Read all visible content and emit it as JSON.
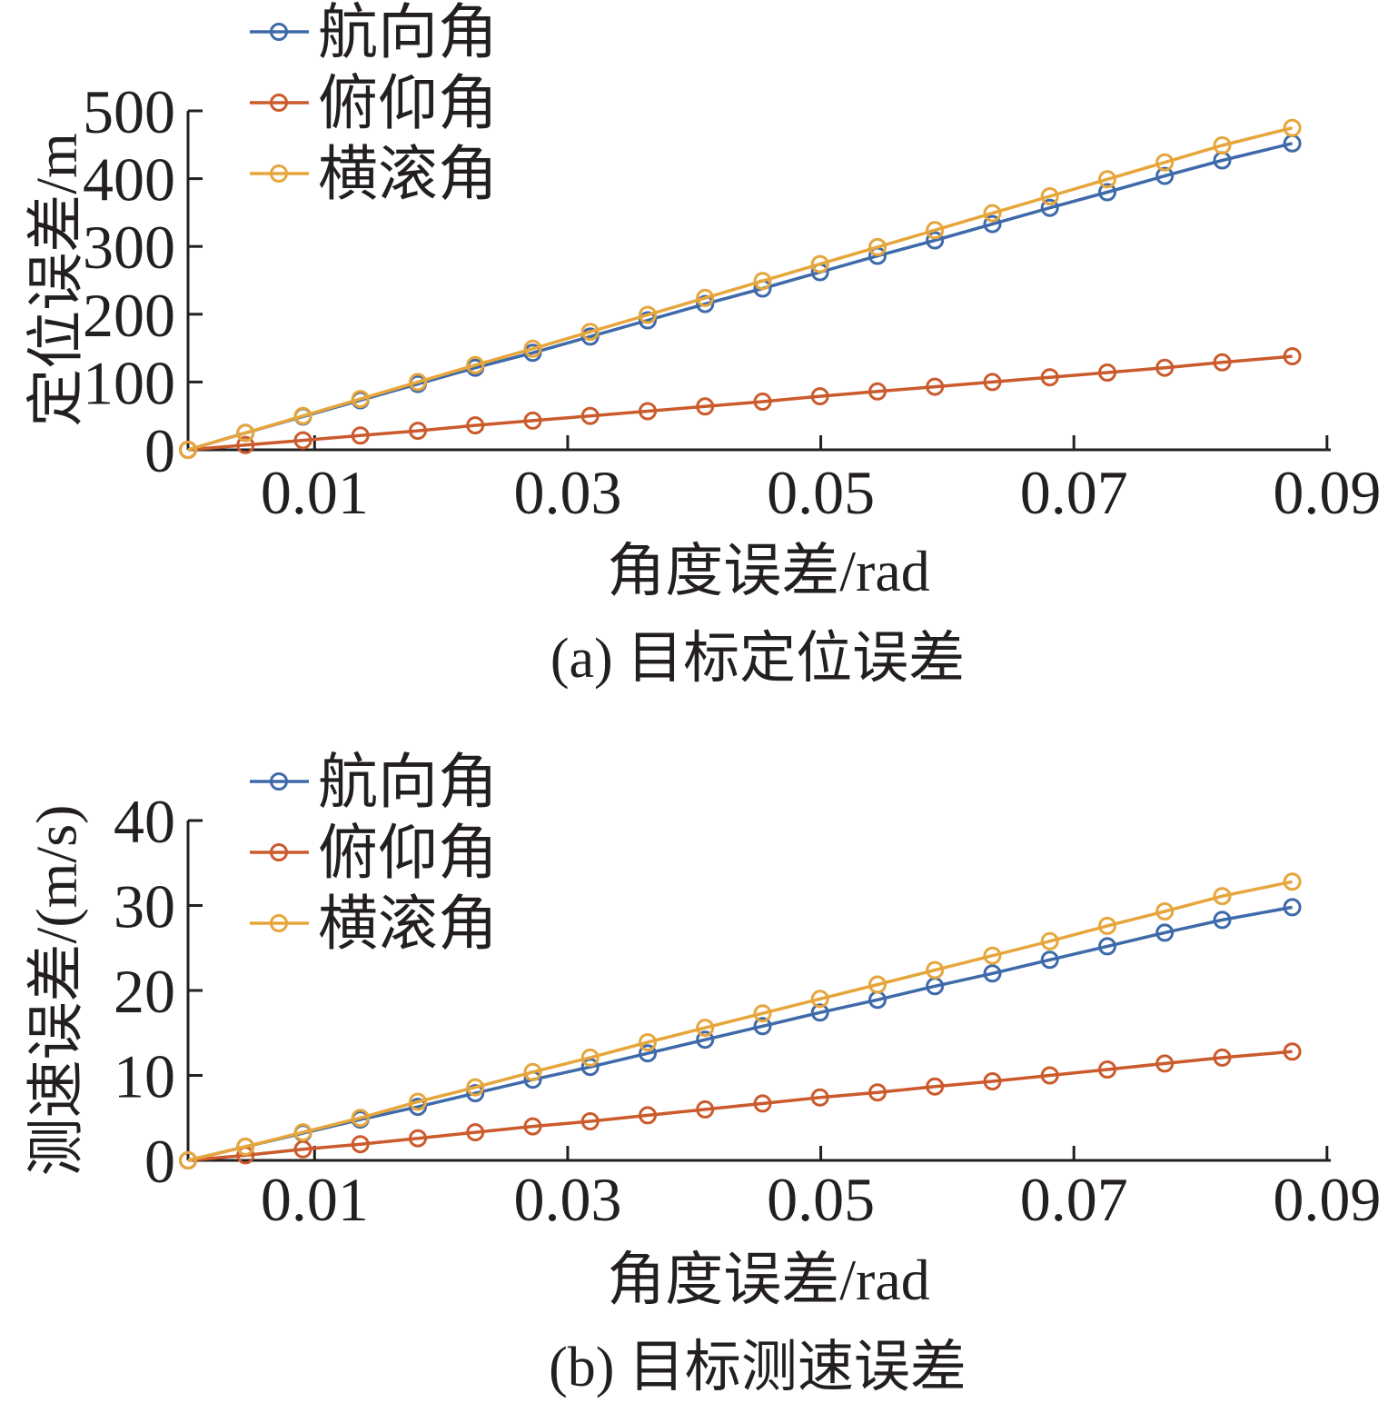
{
  "chart_data": [
    {
      "type": "line",
      "caption": "(a) 目标定位误差",
      "xlabel": "角度误差/rad",
      "ylabel": "定位误差/m",
      "xlim": [
        0,
        0.0903
      ],
      "ylim": [
        0,
        500
      ],
      "xticks": [
        0.01,
        0.03,
        0.05,
        0.07,
        0.09
      ],
      "xtick_labels": [
        "0.01",
        "0.03",
        "0.05",
        "0.07",
        "0.09"
      ],
      "yticks": [
        0,
        100,
        200,
        300,
        400,
        500
      ],
      "ytick_labels": [
        "0",
        "100",
        "200",
        "300",
        "400",
        "500"
      ],
      "legend_position": "top-left",
      "x": [
        0,
        0.00454,
        0.00908,
        0.01362,
        0.01816,
        0.0227,
        0.02724,
        0.03178,
        0.03632,
        0.04086,
        0.0454,
        0.04994,
        0.05448,
        0.05902,
        0.06356,
        0.0681,
        0.07264,
        0.07718,
        0.08172,
        0.08726
      ],
      "series": [
        {
          "name": "航向角",
          "color": "#3e6aaa",
          "values": [
            0,
            25,
            49,
            73,
            97,
            121,
            143,
            167,
            191,
            215,
            238,
            262,
            286,
            309,
            333,
            357,
            380,
            404,
            427,
            452
          ]
        },
        {
          "name": "俯仰角",
          "color": "#cb5a2c",
          "values": [
            0,
            7,
            14,
            21,
            28,
            36,
            43,
            50,
            57,
            64,
            71,
            79,
            86,
            93,
            100,
            107,
            114,
            121,
            129,
            138
          ]
        },
        {
          "name": "横滚角",
          "color": "#e6a63c",
          "values": [
            0,
            25,
            50,
            75,
            100,
            125,
            149,
            174,
            199,
            224,
            249,
            274,
            299,
            324,
            349,
            374,
            399,
            424,
            449,
            475
          ]
        }
      ]
    },
    {
      "type": "line",
      "caption": "(b) 目标测速误差",
      "xlabel": "角度误差/rad",
      "ylabel": "测速误差/(m/s)",
      "xlim": [
        0,
        0.0903
      ],
      "ylim": [
        0,
        40
      ],
      "xticks": [
        0.01,
        0.03,
        0.05,
        0.07,
        0.09
      ],
      "xtick_labels": [
        "0.01",
        "0.03",
        "0.05",
        "0.07",
        "0.09"
      ],
      "yticks": [
        0,
        10,
        20,
        30,
        40
      ],
      "ytick_labels": [
        "0",
        "10",
        "20",
        "30",
        "40"
      ],
      "legend_position": "top-left",
      "x": [
        0,
        0.00454,
        0.00908,
        0.01362,
        0.01816,
        0.0227,
        0.02724,
        0.03178,
        0.03632,
        0.04086,
        0.0454,
        0.04994,
        0.05448,
        0.05902,
        0.06356,
        0.0681,
        0.07264,
        0.07718,
        0.08172,
        0.08726
      ],
      "series": [
        {
          "name": "航向角",
          "color": "#3e6aaa",
          "values": [
            0,
            1.6,
            3.2,
            4.8,
            6.3,
            7.9,
            9.5,
            11.0,
            12.6,
            14.2,
            15.8,
            17.4,
            18.9,
            20.5,
            22.0,
            23.6,
            25.2,
            26.8,
            28.3,
            29.8
          ]
        },
        {
          "name": "俯仰角",
          "color": "#cb5a2c",
          "values": [
            0,
            0.6,
            1.3,
            1.9,
            2.6,
            3.3,
            4.0,
            4.6,
            5.3,
            6.0,
            6.7,
            7.4,
            8.0,
            8.7,
            9.3,
            10.0,
            10.7,
            11.4,
            12.1,
            12.8
          ]
        },
        {
          "name": "横滚角",
          "color": "#e6a63c",
          "values": [
            0,
            1.6,
            3.3,
            5.0,
            6.9,
            8.6,
            10.4,
            12.1,
            13.9,
            15.6,
            17.3,
            19.0,
            20.7,
            22.4,
            24.1,
            25.8,
            27.6,
            29.3,
            31.1,
            32.8
          ]
        }
      ]
    }
  ]
}
